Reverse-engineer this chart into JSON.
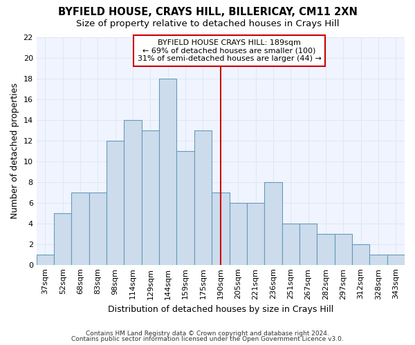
{
  "title1": "BYFIELD HOUSE, CRAYS HILL, BILLERICAY, CM11 2XN",
  "title2": "Size of property relative to detached houses in Crays Hill",
  "xlabel": "Distribution of detached houses by size in Crays Hill",
  "ylabel": "Number of detached properties",
  "footnote1": "Contains HM Land Registry data © Crown copyright and database right 2024.",
  "footnote2": "Contains public sector information licensed under the Open Government Licence v3.0.",
  "bar_labels": [
    "37sqm",
    "52sqm",
    "68sqm",
    "83sqm",
    "98sqm",
    "114sqm",
    "129sqm",
    "144sqm",
    "159sqm",
    "175sqm",
    "190sqm",
    "205sqm",
    "221sqm",
    "236sqm",
    "251sqm",
    "267sqm",
    "282sqm",
    "297sqm",
    "312sqm",
    "328sqm",
    "343sqm"
  ],
  "bar_values": [
    1,
    5,
    7,
    7,
    12,
    14,
    13,
    18,
    11,
    13,
    7,
    6,
    6,
    8,
    4,
    4,
    3,
    3,
    2,
    1,
    1
  ],
  "bar_color": "#ccdcec",
  "bar_edge_color": "#6699bb",
  "marker_color": "#cc0000",
  "annotation_line1": "BYFIELD HOUSE CRAYS HILL: 189sqm",
  "annotation_line2": "← 69% of detached houses are smaller (100)",
  "annotation_line3": "31% of semi-detached houses are larger (44) →",
  "marker_bar_index": 10,
  "ylim": [
    0,
    22
  ],
  "yticks": [
    0,
    2,
    4,
    6,
    8,
    10,
    12,
    14,
    16,
    18,
    20,
    22
  ],
  "background_color": "#ffffff",
  "plot_bg_color": "#f0f4ff",
  "grid_color": "#e0e8f0",
  "title_fontsize": 10.5,
  "subtitle_fontsize": 9.5,
  "label_fontsize": 9,
  "tick_fontsize": 8,
  "annot_fontsize": 8
}
